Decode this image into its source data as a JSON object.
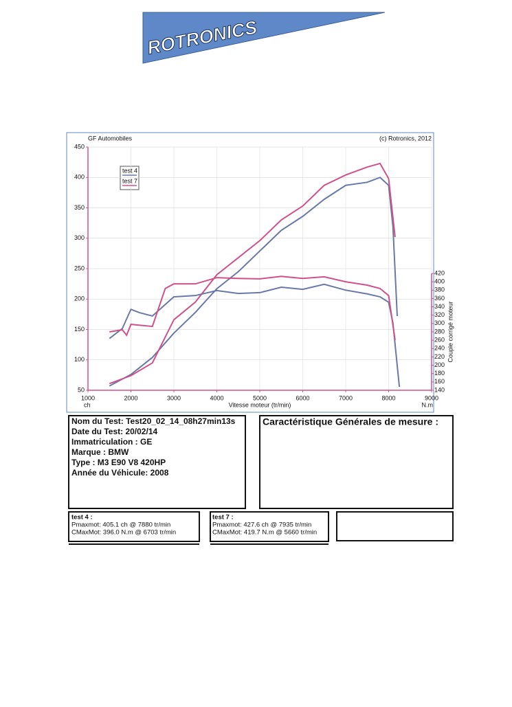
{
  "logo": "ROTRONICS",
  "chart_data": {
    "type": "line",
    "subtitle_left": "GF Automobiles",
    "subtitle_right": "(c) Rotronics, 2012",
    "x_label": "Vitesse moteur (tr/min)",
    "y_unit": "ch",
    "y2_unit": "N.m",
    "y2_label": "Couple corrigé moteur",
    "xlim": [
      1000,
      9000
    ],
    "xticks": [
      1000,
      2000,
      3000,
      4000,
      5000,
      6000,
      7000,
      8000,
      9000
    ],
    "ylim": [
      50,
      450
    ],
    "yticks": [
      50,
      100,
      150,
      200,
      250,
      300,
      350,
      400,
      450
    ],
    "y2lim": [
      140,
      420
    ],
    "y2ticks": [
      140,
      160,
      180,
      200,
      220,
      240,
      260,
      280,
      300,
      320,
      340,
      360,
      380,
      400,
      420
    ],
    "grid": true,
    "series": [
      {
        "name": "test 4",
        "color": "#6878a8",
        "x": [
          1500,
          2000,
          2500,
          3000,
          3500,
          4000,
          4500,
          5000,
          5500,
          6000,
          6500,
          7000,
          7500,
          7800,
          8000,
          8100,
          8200
        ],
        "values": [
          57,
          76,
          104,
          144,
          178,
          217,
          245,
          279,
          313,
          336,
          364,
          387,
          392,
          400,
          387,
          319,
          172
        ]
      },
      {
        "name": "test 7",
        "color": "#d0508a",
        "x": [
          1500,
          2000,
          2500,
          3000,
          3500,
          4000,
          4500,
          5000,
          5500,
          6000,
          6500,
          7000,
          7500,
          7800,
          8000,
          8150
        ],
        "values": [
          61,
          74,
          95,
          166,
          195,
          240,
          268,
          296,
          330,
          353,
          387,
          404,
          417,
          423,
          398,
          302
        ]
      },
      {
        "name": "test 4",
        "color": "#6878a8",
        "axis": "y2",
        "x": [
          1500,
          1800,
          2000,
          2200,
          2500,
          3000,
          3500,
          4000,
          4500,
          5000,
          5500,
          6000,
          6500,
          7000,
          7500,
          7800,
          8000,
          8100,
          8250
        ],
        "values": [
          264,
          288,
          334,
          326,
          318,
          364,
          367,
          379,
          372,
          374,
          387,
          382,
          394,
          380,
          371,
          364,
          351,
          301,
          148
        ]
      },
      {
        "name": "test 7",
        "color": "#d0508a",
        "axis": "y2",
        "x": [
          1500,
          1800,
          1900,
          2000,
          2500,
          2800,
          3000,
          3500,
          4000,
          4500,
          5000,
          5500,
          6000,
          6500,
          7000,
          7500,
          7800,
          8000,
          8150
        ],
        "values": [
          280,
          285,
          272,
          298,
          293,
          384,
          395,
          395,
          410,
          408,
          407,
          413,
          408,
          412,
          400,
          392,
          384,
          367,
          260
        ]
      }
    ]
  },
  "info": {
    "lines": [
      "Nom du Test: Test20_02_14_08h27min13s",
      "Date du Test: 20/02/14",
      "Immatriculation  : GE",
      "Marque  : BMW",
      "Type  : M3 E90 V8 420HP",
      "Année du Véhicule: 2008"
    ],
    "general_title": "Caractéristique Générales de mesure :"
  },
  "tests": [
    {
      "title": "test 4 :",
      "lines": [
        "Pmaxmot: 405.1 ch @ 7880 tr/min",
        "CMaxMot: 396.0 N.m @ 6703 tr/min"
      ]
    },
    {
      "title": "test 7 :",
      "lines": [
        "Pmaxmot: 427.6 ch @ 7935 tr/min",
        "CMaxMot: 419.7 N.m @ 5660 tr/min"
      ]
    }
  ]
}
